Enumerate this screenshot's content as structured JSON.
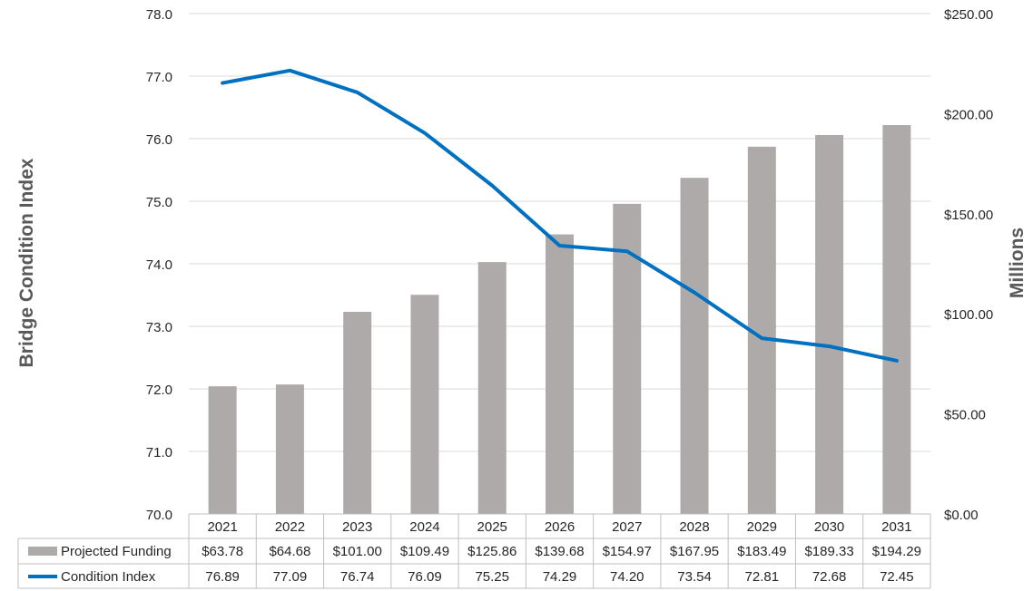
{
  "chart_data": {
    "type": "bar",
    "y_left_label": "Bridge Condition Index",
    "y_right_label": "Millions",
    "y_left_lim": [
      70,
      78
    ],
    "y_left_ticks": [
      "70.0",
      "71.0",
      "72.0",
      "73.0",
      "74.0",
      "75.0",
      "76.0",
      "77.0",
      "78.0"
    ],
    "y_right_lim": [
      0,
      250
    ],
    "y_right_ticks": [
      "$0.00",
      "$50.00",
      "$100.00",
      "$150.00",
      "$200.00",
      "$250.00"
    ],
    "grid": true,
    "categories": [
      "2021",
      "2022",
      "2023",
      "2024",
      "2025",
      "2026",
      "2027",
      "2028",
      "2029",
      "2030",
      "2031"
    ],
    "series": [
      {
        "name": "Projected Funding",
        "type": "bar",
        "axis": "right",
        "color": "#aeaaaa",
        "values": [
          63.78,
          64.68,
          101.0,
          109.49,
          125.86,
          139.68,
          154.97,
          167.95,
          183.49,
          189.33,
          194.29
        ],
        "labels": [
          "$63.78",
          "$64.68",
          "$101.00",
          "$109.49",
          "$125.86",
          "$139.68",
          "$154.97",
          "$167.95",
          "$183.49",
          "$189.33",
          "$194.29"
        ]
      },
      {
        "name": "Condition Index",
        "type": "line",
        "axis": "left",
        "color": "#0070c0",
        "values": [
          76.89,
          77.09,
          76.74,
          76.09,
          75.25,
          74.29,
          74.2,
          73.54,
          72.81,
          72.68,
          72.45
        ],
        "labels": [
          "76.89",
          "77.09",
          "76.74",
          "76.09",
          "75.25",
          "74.29",
          "74.20",
          "73.54",
          "72.81",
          "72.68",
          "72.45"
        ]
      }
    ]
  }
}
